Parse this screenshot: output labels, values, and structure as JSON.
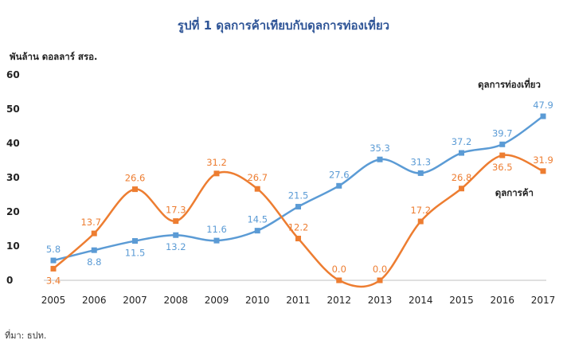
{
  "title": "รูปที่ 1 ดุลการค้าเทียบกับดุลการท่องเที่ยว",
  "ylabel": "พันล้าน ดอลลาร์ สรอ.",
  "source": "ที่มา: ธปท.",
  "chart_data": {
    "type": "line",
    "title": "รูปที่ 1 ดุลการค้าเทียบกับดุลการท่องเที่ยว",
    "xlabel": "",
    "ylabel": "พันล้าน ดอลลาร์ สรอ.",
    "ylim": [
      0,
      60
    ],
    "yticks": [
      0,
      10,
      20,
      30,
      40,
      50,
      60
    ],
    "grid": false,
    "categories": [
      "2005",
      "2006",
      "2007",
      "2008",
      "2009",
      "2010",
      "2011",
      "2012",
      "2013",
      "2014",
      "2015",
      "2016",
      "2017"
    ],
    "series": [
      {
        "name": "ดุลการท่องเที่ยว",
        "color": "#5b9bd5",
        "values": [
          5.8,
          8.8,
          11.5,
          13.2,
          11.6,
          14.5,
          21.5,
          27.6,
          35.3,
          31.3,
          37.2,
          39.7,
          47.9
        ]
      },
      {
        "name": "ดุลการค้า",
        "color": "#ed7d31",
        "values": [
          3.4,
          13.7,
          26.6,
          17.3,
          31.2,
          26.7,
          12.2,
          0.0,
          0.0,
          17.2,
          26.8,
          36.5,
          31.9
        ]
      }
    ]
  }
}
